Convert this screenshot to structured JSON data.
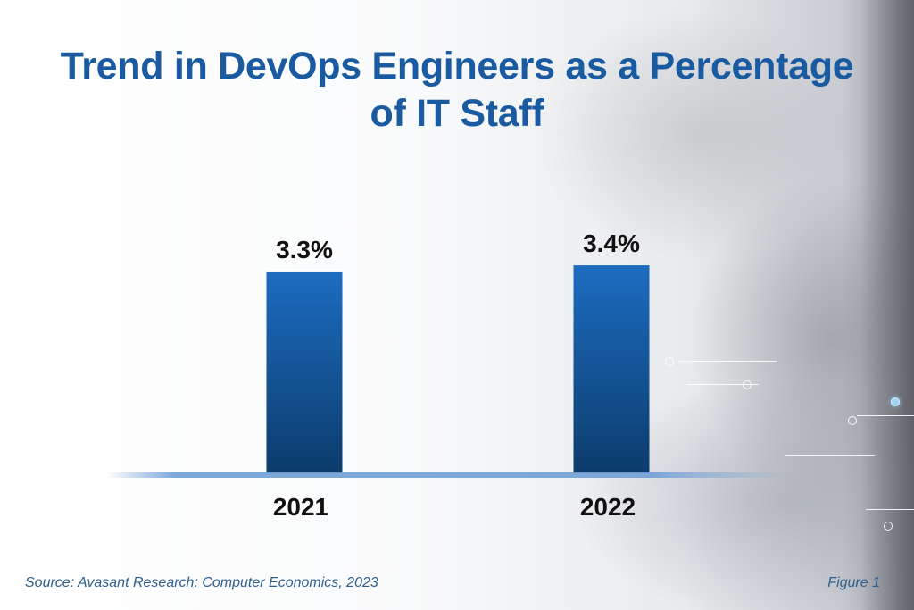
{
  "chart_data": {
    "type": "bar",
    "title": "Trend in DevOps Engineers as a Percentage of IT Staff",
    "title_lines": [
      "Trend in DevOps Engineers as a Percentage",
      "of IT Staff"
    ],
    "categories": [
      "2021",
      "2022"
    ],
    "values": [
      3.3,
      3.4
    ],
    "value_labels": [
      "3.3%",
      "3.4%"
    ],
    "xlabel": "",
    "ylabel": "",
    "ylim": [
      0,
      3.4
    ],
    "grid": false,
    "legend": "none",
    "colors": {
      "bar_top": "#1c6cc0",
      "bar_bottom": "#0c3c6c",
      "baseline": "#6f9fd6",
      "title": "#1a5aa0"
    }
  },
  "footer": {
    "source": "Source: Avasant Research: Computer Economics, 2023",
    "figure": "Figure 1"
  }
}
